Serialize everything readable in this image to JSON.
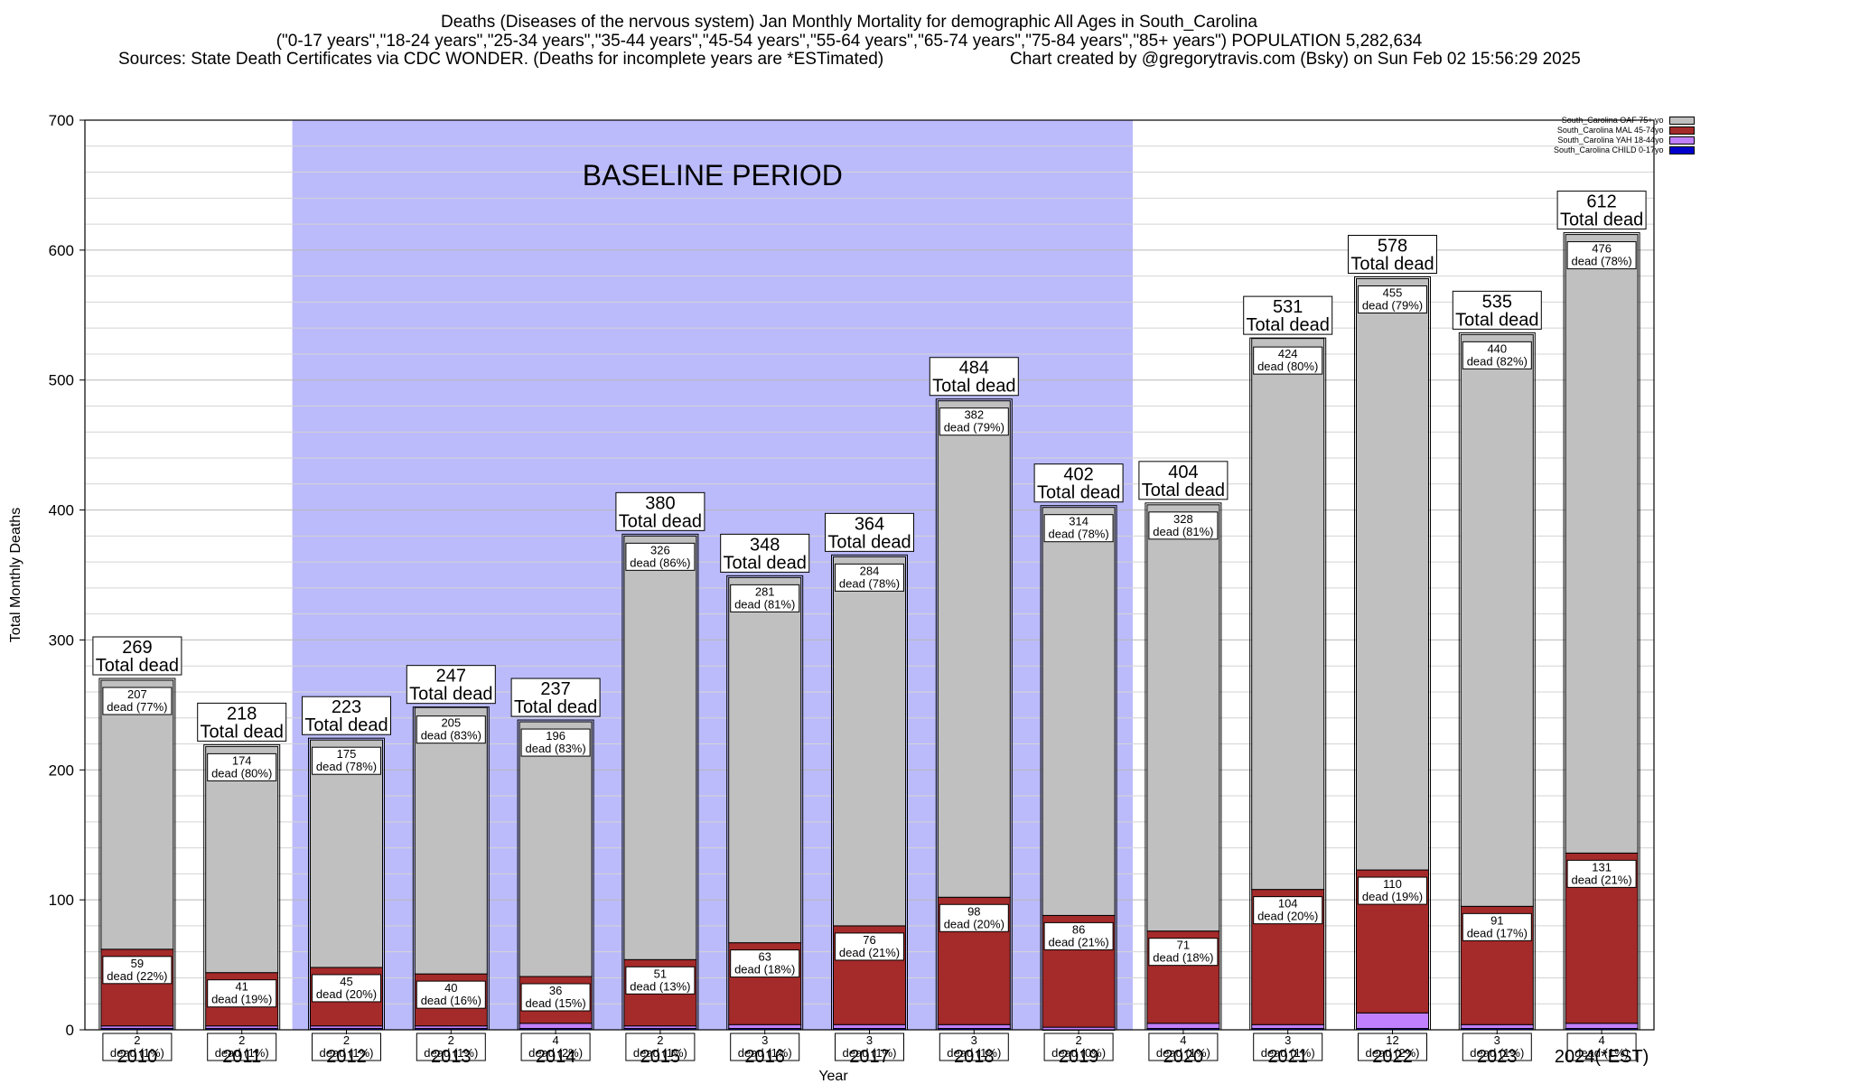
{
  "header": {
    "line1": "Deaths (Diseases of the nervous system) Jan Monthly Mortality for demographic All Ages in South_Carolina",
    "line2": "(\"0-17 years\",\"18-24 years\",\"25-34 years\",\"35-44 years\",\"45-54 years\",\"55-64 years\",\"65-74 years\",\"75-84 years\",\"85+ years\") POPULATION 5,282,634",
    "line3_left": "Sources: State Death Certificates via CDC WONDER. (Deaths for incomplete years are *ESTimated)",
    "line3_right": "Chart created by @gregorytravis.com (Bsky) on Sun Feb 02 15:56:29 2025"
  },
  "legend": {
    "items": [
      {
        "label": "South_Carolina OAF 75+ yo",
        "color": "#c0c0c0"
      },
      {
        "label": "South_Carolina MAL 45-74yo",
        "color": "#a52a2a"
      },
      {
        "label": "South_Carolina YAH 18-44yo",
        "color": "#c080ff"
      },
      {
        "label": "South_Carolina CHILD 0-17yo",
        "color": "#0000cd"
      }
    ]
  },
  "chart_data": {
    "type": "bar",
    "stacked": true,
    "title": "Deaths (Diseases of the nervous system) Jan Monthly Mortality for demographic All Ages in South_Carolina",
    "xlabel": "Year",
    "ylabel": "Total Monthly Deaths",
    "ylim": [
      0,
      700
    ],
    "yticks": [
      0,
      100,
      200,
      300,
      400,
      500,
      600,
      700
    ],
    "grid": true,
    "legend_position": "top-right",
    "baseline_label": "BASELINE PERIOD",
    "baseline_range": [
      "2012",
      "2019"
    ],
    "baseline_color": "#bbbbfb",
    "total_suffix": "Total dead",
    "categories": [
      "2010",
      "2011",
      "2012",
      "2013",
      "2014",
      "2015",
      "2016",
      "2017",
      "2018",
      "2019",
      "2020",
      "2021",
      "2022",
      "2023",
      "2024(*EST)"
    ],
    "totals": [
      269,
      218,
      223,
      247,
      237,
      380,
      348,
      364,
      484,
      402,
      404,
      531,
      578,
      535,
      612
    ],
    "series": [
      {
        "name": "South_Carolina CHILD 0-17yo",
        "color": "#0000cd",
        "values": [
          1,
          1,
          1,
          1,
          1,
          1,
          1,
          1,
          1,
          0,
          1,
          1,
          1,
          1,
          1
        ]
      },
      {
        "name": "South_Carolina YAH 18-44yo",
        "color": "#c080ff",
        "values": [
          2,
          2,
          2,
          2,
          4,
          2,
          3,
          3,
          3,
          2,
          4,
          3,
          12,
          3,
          4
        ],
        "labels": [
          "dead (1%)",
          "dead (1%)",
          "dead (1%)",
          "dead (1%)",
          "dead (2%)",
          "dead (1%)",
          "dead (1%)",
          "dead (1%)",
          "dead (1%)",
          "dead (0%)",
          "dead (1%)",
          "dead (1%)",
          "dead (2%)",
          "dead (1%)",
          "dead (1%)"
        ]
      },
      {
        "name": "South_Carolina MAL 45-74yo",
        "color": "#a52a2a",
        "values": [
          59,
          41,
          45,
          40,
          36,
          51,
          63,
          76,
          98,
          86,
          71,
          104,
          110,
          91,
          131
        ],
        "labels": [
          "dead (22%)",
          "dead (19%)",
          "dead (20%)",
          "dead (16%)",
          "dead (15%)",
          "dead (13%)",
          "dead (18%)",
          "dead (21%)",
          "dead (20%)",
          "dead (21%)",
          "dead (18%)",
          "dead (20%)",
          "dead (19%)",
          "dead (17%)",
          "dead (21%)"
        ]
      },
      {
        "name": "South_Carolina OAF 75+ yo",
        "color": "#c0c0c0",
        "values": [
          207,
          174,
          175,
          205,
          196,
          326,
          281,
          284,
          382,
          314,
          328,
          424,
          455,
          440,
          476
        ],
        "labels": [
          "dead (77%)",
          "dead (80%)",
          "dead (78%)",
          "dead (83%)",
          "dead (83%)",
          "dead (86%)",
          "dead (81%)",
          "dead (78%)",
          "dead (79%)",
          "dead (78%)",
          "dead (81%)",
          "dead (80%)",
          "dead (79%)",
          "dead (82%)",
          "dead (78%)"
        ]
      }
    ]
  }
}
